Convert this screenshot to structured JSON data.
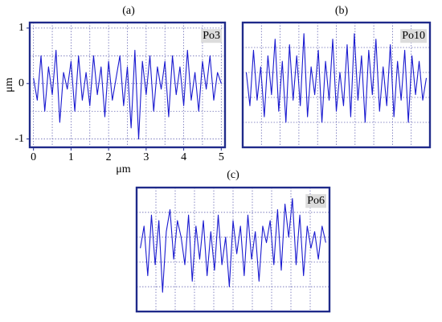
{
  "chart_data": [
    {
      "type": "line",
      "title": "(a)",
      "annotation": "Po3",
      "xlabel": "μm",
      "ylabel": "μm",
      "color": "#1a1ad0",
      "grid": true,
      "xlim": [
        -0.1,
        5.1
      ],
      "ylim": [
        -1.15,
        1.1
      ],
      "xticks": [
        0,
        1,
        2,
        3,
        4,
        5
      ],
      "yticks": [
        -1,
        0,
        1
      ],
      "x": [
        0,
        0.1,
        0.2,
        0.3,
        0.4,
        0.5,
        0.6,
        0.7,
        0.8,
        0.9,
        1,
        1.1,
        1.2,
        1.3,
        1.4,
        1.5,
        1.6,
        1.7,
        1.8,
        1.9,
        2,
        2.1,
        2.2,
        2.3,
        2.4,
        2.5,
        2.6,
        2.7,
        2.8,
        2.9,
        3,
        3.1,
        3.2,
        3.3,
        3.4,
        3.5,
        3.6,
        3.7,
        3.8,
        3.9,
        4,
        4.1,
        4.2,
        4.3,
        4.4,
        4.5,
        4.6,
        4.7,
        4.8,
        4.9,
        5
      ],
      "values": [
        0.1,
        -0.3,
        0.5,
        -0.5,
        0.3,
        -0.2,
        0.6,
        -0.7,
        0.2,
        -0.1,
        0.4,
        -0.5,
        0.5,
        -0.3,
        0.2,
        -0.4,
        0.5,
        -0.2,
        0.3,
        -0.6,
        0.4,
        -0.3,
        0.1,
        0.5,
        -0.4,
        0.3,
        -0.8,
        0.6,
        -1.0,
        0.4,
        -0.2,
        0.5,
        -0.5,
        0.3,
        -0.1,
        0.4,
        -0.6,
        0.5,
        -0.2,
        0.3,
        -0.4,
        0.6,
        -0.3,
        0.2,
        -0.5,
        0.4,
        -0.1,
        0.5,
        -0.3,
        0.2,
        0.0
      ]
    },
    {
      "type": "line",
      "title": "(b)",
      "annotation": "Po10",
      "color": "#1a1ad0",
      "grid": true,
      "xlim": [
        -0.1,
        5.1
      ],
      "ylim": [
        -1.15,
        1.1
      ],
      "x": [
        0,
        0.1,
        0.2,
        0.3,
        0.4,
        0.5,
        0.6,
        0.7,
        0.8,
        0.9,
        1,
        1.1,
        1.2,
        1.3,
        1.4,
        1.5,
        1.6,
        1.7,
        1.8,
        1.9,
        2,
        2.1,
        2.2,
        2.3,
        2.4,
        2.5,
        2.6,
        2.7,
        2.8,
        2.9,
        3,
        3.1,
        3.2,
        3.3,
        3.4,
        3.5,
        3.6,
        3.7,
        3.8,
        3.9,
        4,
        4.1,
        4.2,
        4.3,
        4.4,
        4.5,
        4.6,
        4.7,
        4.8,
        4.9,
        5
      ],
      "values": [
        0.2,
        -0.4,
        0.6,
        -0.3,
        0.3,
        -0.6,
        0.5,
        -0.2,
        0.8,
        -0.5,
        0.4,
        -0.7,
        0.7,
        -0.3,
        0.5,
        -0.4,
        0.9,
        -0.6,
        0.3,
        -0.2,
        0.6,
        -0.7,
        0.4,
        -0.3,
        0.8,
        -0.5,
        0.2,
        -0.4,
        0.7,
        -0.6,
        0.9,
        -0.3,
        0.5,
        -0.7,
        0.6,
        -0.2,
        0.8,
        -0.5,
        0.3,
        -0.4,
        0.7,
        -0.6,
        0.4,
        -0.3,
        0.6,
        -0.7,
        0.5,
        -0.2,
        0.4,
        -0.3,
        0.1
      ]
    },
    {
      "type": "line",
      "title": "(c)",
      "annotation": "Po6",
      "color": "#1a1ad0",
      "grid": true,
      "xlim": [
        -0.1,
        5.1
      ],
      "ylim": [
        -1.15,
        1.1
      ],
      "x": [
        0,
        0.1,
        0.2,
        0.3,
        0.4,
        0.5,
        0.6,
        0.7,
        0.8,
        0.9,
        1,
        1.1,
        1.2,
        1.3,
        1.4,
        1.5,
        1.6,
        1.7,
        1.8,
        1.9,
        2,
        2.1,
        2.2,
        2.3,
        2.4,
        2.5,
        2.6,
        2.7,
        2.8,
        2.9,
        3,
        3.1,
        3.2,
        3.3,
        3.4,
        3.5,
        3.6,
        3.7,
        3.8,
        3.9,
        4,
        4.1,
        4.2,
        4.3,
        4.4,
        4.5,
        4.6,
        4.7,
        4.8,
        4.9,
        5
      ],
      "values": [
        0.0,
        0.4,
        -0.5,
        0.6,
        -0.3,
        0.5,
        -0.8,
        0.3,
        0.7,
        -0.2,
        0.5,
        0.2,
        -0.3,
        0.6,
        -0.6,
        0.4,
        -0.2,
        0.5,
        -0.5,
        0.3,
        -0.4,
        0.6,
        -0.3,
        0.2,
        -0.7,
        0.5,
        -0.1,
        0.4,
        -0.5,
        0.6,
        -0.2,
        0.3,
        -0.6,
        0.4,
        0.1,
        0.5,
        -0.3,
        0.7,
        -0.4,
        0.8,
        0.2,
        0.9,
        -0.3,
        0.6,
        -0.5,
        0.4,
        0.0,
        0.3,
        -0.2,
        0.4,
        0.1
      ]
    }
  ]
}
